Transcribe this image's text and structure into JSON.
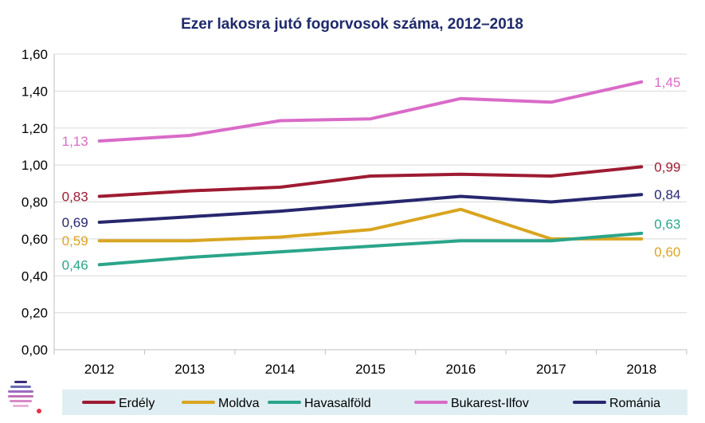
{
  "chart_data": {
    "type": "line",
    "title": "Ezer lakosra jutó fogorvosok száma, 2012–2018",
    "categories": [
      "2012",
      "2013",
      "2014",
      "2015",
      "2016",
      "2017",
      "2018"
    ],
    "ylim": [
      0,
      1.6
    ],
    "yticks": [
      0,
      0.2,
      0.4,
      0.6,
      0.8,
      1.0,
      1.2,
      1.4,
      1.6
    ],
    "ytick_labels": [
      "0,00",
      "0,20",
      "0,40",
      "0,60",
      "0,80",
      "1,00",
      "1,20",
      "1,40",
      "1,60"
    ],
    "grid": true,
    "legend_position": "bottom",
    "series": [
      {
        "name": "Erdély",
        "color": "#9e1b32",
        "values": [
          0.83,
          0.86,
          0.88,
          0.94,
          0.95,
          0.94,
          0.99
        ],
        "first_label": "0,83",
        "last_label": "0,99"
      },
      {
        "name": "Moldva",
        "color": "#d9a520",
        "values": [
          0.59,
          0.59,
          0.61,
          0.65,
          0.76,
          0.6,
          0.6
        ],
        "first_label": "0,59",
        "last_label": "0,60"
      },
      {
        "name": "Havasalföld",
        "color": "#2aa58a",
        "values": [
          0.46,
          0.5,
          0.53,
          0.56,
          0.59,
          0.59,
          0.63
        ],
        "first_label": "0,46",
        "last_label": "0,63"
      },
      {
        "name": "Bukarest-Ilfov",
        "color": "#d96bc8",
        "values": [
          1.13,
          1.16,
          1.24,
          1.25,
          1.36,
          1.34,
          1.45
        ],
        "first_label": "1,13",
        "last_label": "1,45"
      },
      {
        "name": "Románia",
        "color": "#27276e",
        "values": [
          0.69,
          0.72,
          0.75,
          0.79,
          0.83,
          0.8,
          0.84
        ],
        "first_label": "0,69",
        "last_label": "0,84"
      }
    ]
  },
  "colors": {
    "title": "#1f2a6b",
    "grid": "#d9d9d9",
    "axis": "#bfbfbf",
    "legend_background": "#dfeef2"
  },
  "logo": {
    "icon": "institute-logo-icon"
  }
}
